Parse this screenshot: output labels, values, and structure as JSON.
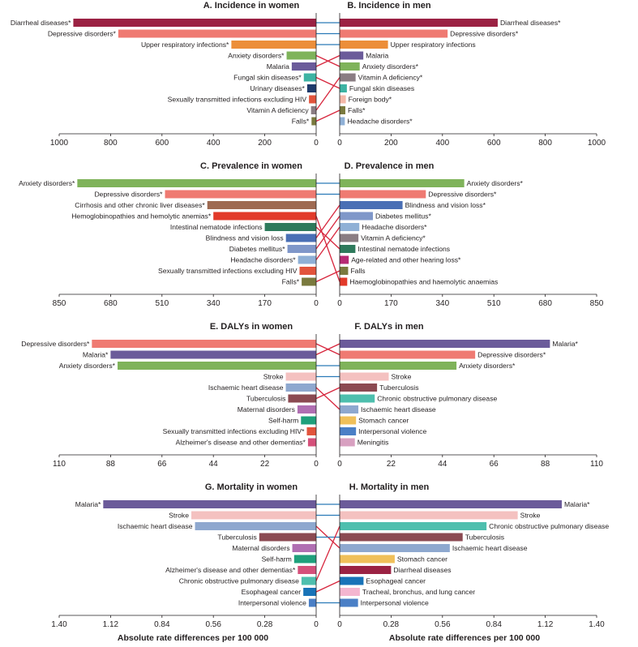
{
  "xlabels": {
    "left": "Absolute rate differences per 100 000",
    "right": "Absolute rate differences per 100 000"
  },
  "colors": {
    "Diarrheal diseases": "#9b2243",
    "Depressive disorders": "#ef7a72",
    "Upper respiratory infections": "#ec8e3a",
    "Anxiety disorders": "#7fb35a",
    "Malaria": "#6b5b9a",
    "Fungal skin diseases": "#3db3a3",
    "Urinary diseases": "#1e3a6b",
    "Sexually transmitted infections excluding HIV": "#e2543c",
    "Vitamin A deficiency": "#8a7d83",
    "Falls": "#7a7a3e",
    "Foreign body": "#f4b8a8",
    "Headache disorders": "#8fb0d6",
    "Cirrhosis and other chronic liver diseases": "#9e6a52",
    "Hemoglobinopathies and hemolytic anemias": "#e23a2a",
    "Intestinal nematode infections": "#2e7a5c",
    "Blindness and vision loss": "#4a6fb5",
    "Diabetes mellitus": "#7f97c9",
    "Age-related and other hearing loss": "#b72a74",
    "Stroke": "#f4c1c0",
    "Ischaemic heart disease": "#8ea8cf",
    "Tuberculosis": "#8b4a52",
    "Maternal disorders": "#b06fb2",
    "Self-harm": "#1fa07b",
    "Alzheimer's disease and other dementias": "#d5507a",
    "Chronic obstructive pulmonary disease": "#4ebfae",
    "Stomach cancer": "#f0c05a",
    "Interpersonal violence": "#4a7fc6",
    "Meningitis": "#d8a0c0",
    "Esophageal cancer": "#1873b8",
    "Tracheal, bronchus, and lung cancer": "#f4b6d0",
    "connector_same": "#2a7ab8",
    "connector_cross": "#d7263d"
  },
  "chart_data": [
    {
      "type": "bar",
      "orientation": "horizontal",
      "title": "A. Incidence in women",
      "direction": "left",
      "xlim": [
        0,
        1000
      ],
      "ticks": [
        "1000",
        "800",
        "600",
        "400",
        "200",
        "0"
      ],
      "categories": [
        "Diarrheal diseases*",
        "Depressive disorders*",
        "Upper respiratory infections*",
        "Anxiety disorders*",
        "Malaria",
        "Fungal skin diseases*",
        "Urinary diseases*",
        "Sexually transmitted infections excluding HIV",
        "Vitamin A deficiency",
        "Falls*"
      ],
      "values": [
        945,
        770,
        330,
        115,
        95,
        48,
        35,
        28,
        20,
        18
      ],
      "cause_keys": [
        "Diarrheal diseases",
        "Depressive disorders",
        "Upper respiratory infections",
        "Anxiety disorders",
        "Malaria",
        "Fungal skin diseases",
        "Urinary diseases",
        "Sexually transmitted infections excluding HIV",
        "Vitamin A deficiency",
        "Falls"
      ]
    },
    {
      "type": "bar",
      "orientation": "horizontal",
      "title": "B. Incidence in men",
      "direction": "right",
      "xlim": [
        0,
        1000
      ],
      "ticks": [
        "0",
        "200",
        "400",
        "600",
        "800",
        "1000"
      ],
      "categories": [
        "Diarrheal diseases*",
        "Depressive disorders*",
        "Upper respiratory infections",
        "Malaria",
        "Anxiety disorders*",
        "Vitamin A deficiency*",
        "Fungal skin diseases",
        "Foreign body*",
        "Falls*",
        "Headache disorders*"
      ],
      "values": [
        615,
        420,
        188,
        92,
        78,
        62,
        28,
        24,
        22,
        20
      ],
      "cause_keys": [
        "Diarrheal diseases",
        "Depressive disorders",
        "Upper respiratory infections",
        "Malaria",
        "Anxiety disorders",
        "Vitamin A deficiency",
        "Fungal skin diseases",
        "Foreign body",
        "Falls",
        "Headache disorders"
      ]
    },
    {
      "type": "bar",
      "orientation": "horizontal",
      "title": "C. Prevalence in women",
      "direction": "left",
      "xlim": [
        0,
        850
      ],
      "ticks": [
        "850",
        "680",
        "510",
        "340",
        "170",
        "0"
      ],
      "categories": [
        "Anxiety disorders*",
        "Depressive disorders*",
        "Cirrhosis and other chronic liver diseases*",
        "Hemoglobinopathies and hemolytic anemias*",
        "Intestinal nematode infections",
        "Blindness and vision loss",
        "Diabetes mellitus*",
        "Headache disorders*",
        "Sexually transmitted infections excluding HIV",
        "Falls*"
      ],
      "values": [
        790,
        500,
        360,
        340,
        170,
        100,
        95,
        60,
        55,
        48
      ],
      "cause_keys": [
        "Anxiety disorders",
        "Depressive disorders",
        "Cirrhosis and other chronic liver diseases",
        "Hemoglobinopathies and hemolytic anemias",
        "Intestinal nematode infections",
        "Blindness and vision loss",
        "Diabetes mellitus",
        "Headache disorders",
        "Sexually transmitted infections excluding HIV",
        "Falls"
      ]
    },
    {
      "type": "bar",
      "orientation": "horizontal",
      "title": "D. Prevalence in men",
      "direction": "right",
      "xlim": [
        0,
        850
      ],
      "ticks": [
        "0",
        "170",
        "340",
        "510",
        "680",
        "850"
      ],
      "categories": [
        "Anxiety disorders*",
        "Depressive disorders*",
        "Blindness and vision loss*",
        "Diabetes mellitus*",
        "Headache disorders*",
        "Vitamin A deficiency*",
        "Intestinal nematode infections",
        "Age-related and other hearing loss*",
        "Falls",
        "Haemoglobinopathies and haemolytic anaemias"
      ],
      "values": [
        412,
        285,
        208,
        110,
        65,
        62,
        52,
        30,
        28,
        25
      ],
      "cause_keys": [
        "Anxiety disorders",
        "Depressive disorders",
        "Blindness and vision loss",
        "Diabetes mellitus",
        "Headache disorders",
        "Vitamin A deficiency",
        "Intestinal nematode infections",
        "Age-related and other hearing loss",
        "Falls",
        "Hemoglobinopathies and hemolytic anemias"
      ]
    },
    {
      "type": "bar",
      "orientation": "horizontal",
      "title": "E. DALYs in women",
      "direction": "left",
      "xlim": [
        0,
        110
      ],
      "ticks": [
        "110",
        "88",
        "66",
        "44",
        "22",
        "0"
      ],
      "categories": [
        "Depressive disorders*",
        "Malaria*",
        "Anxiety disorders*",
        "Stroke",
        "Ischaemic heart disease",
        "Tuberculosis",
        "Maternal disorders",
        "Self-harm",
        "Sexually transmitted infections excluding HIV*",
        "Alzheimer's disease and other dementias*"
      ],
      "values": [
        96,
        88,
        85,
        13,
        13,
        12,
        8,
        6.5,
        4,
        3.5
      ],
      "cause_keys": [
        "Depressive disorders",
        "Malaria",
        "Anxiety disorders",
        "Stroke",
        "Ischaemic heart disease",
        "Tuberculosis",
        "Maternal disorders",
        "Self-harm",
        "Sexually transmitted infections excluding HIV",
        "Alzheimer's disease and other dementias"
      ]
    },
    {
      "type": "bar",
      "orientation": "horizontal",
      "title": "F. DALYs in men",
      "direction": "right",
      "xlim": [
        0,
        110
      ],
      "ticks": [
        "0",
        "22",
        "44",
        "66",
        "88",
        "110"
      ],
      "categories": [
        "Malaria*",
        "Depressive disorders*",
        "Anxiety disorders*",
        "Stroke",
        "Tuberculosis",
        "Chronic obstructive pulmonary disease",
        "Ischaemic heart disease",
        "Stomach cancer",
        "Interpersonal violence",
        "Meningitis"
      ],
      "values": [
        90,
        58,
        50,
        21,
        16,
        15,
        8,
        7,
        7,
        6.5
      ],
      "cause_keys": [
        "Malaria",
        "Depressive disorders",
        "Anxiety disorders",
        "Stroke",
        "Tuberculosis",
        "Chronic obstructive pulmonary disease",
        "Ischaemic heart disease",
        "Stomach cancer",
        "Interpersonal violence",
        "Meningitis"
      ]
    },
    {
      "type": "bar",
      "orientation": "horizontal",
      "title": "G. Mortality in women",
      "direction": "left",
      "xlim": [
        0,
        1.4
      ],
      "ticks": [
        "1.40",
        "1.12",
        "0.84",
        "0.56",
        "0.28",
        "0"
      ],
      "categories": [
        "Malaria*",
        "Stroke",
        "Ischaemic heart disease",
        "Tuberculosis",
        "Maternal disorders",
        "Self-harm",
        "Alzheimer's disease and other dementias*",
        "Chronic obstructive pulmonary disease",
        "Esophageal cancer",
        "Interpersonal violence"
      ],
      "values": [
        1.16,
        0.68,
        0.66,
        0.31,
        0.13,
        0.12,
        0.1,
        0.08,
        0.07,
        0.04
      ],
      "cause_keys": [
        "Malaria",
        "Stroke",
        "Ischaemic heart disease",
        "Tuberculosis",
        "Maternal disorders",
        "Self-harm",
        "Alzheimer's disease and other dementias",
        "Chronic obstructive pulmonary disease",
        "Esophageal cancer",
        "Interpersonal violence"
      ]
    },
    {
      "type": "bar",
      "orientation": "horizontal",
      "title": "H. Mortality in men",
      "direction": "right",
      "xlim": [
        0,
        1.4
      ],
      "ticks": [
        "0",
        "0.28",
        "0.56",
        "0.84",
        "1.12",
        "1.40"
      ],
      "categories": [
        "Malaria*",
        "Stroke",
        "Chronic obstructive pulmonary disease",
        "Tuberculosis",
        "Ischaemic heart disease",
        "Stomach cancer",
        "Diarrheal diseases",
        "Esophageal cancer",
        "Tracheal, bronchus, and lung cancer",
        "Interpersonal violence"
      ],
      "values": [
        1.21,
        0.97,
        0.8,
        0.67,
        0.6,
        0.3,
        0.28,
        0.13,
        0.11,
        0.1
      ],
      "cause_keys": [
        "Malaria",
        "Stroke",
        "Chronic obstructive pulmonary disease",
        "Tuberculosis",
        "Ischaemic heart disease",
        "Stomach cancer",
        "Diarrheal diseases",
        "Esophageal cancer",
        "Tracheal, bronchus, and lung cancer",
        "Interpersonal violence"
      ]
    }
  ]
}
